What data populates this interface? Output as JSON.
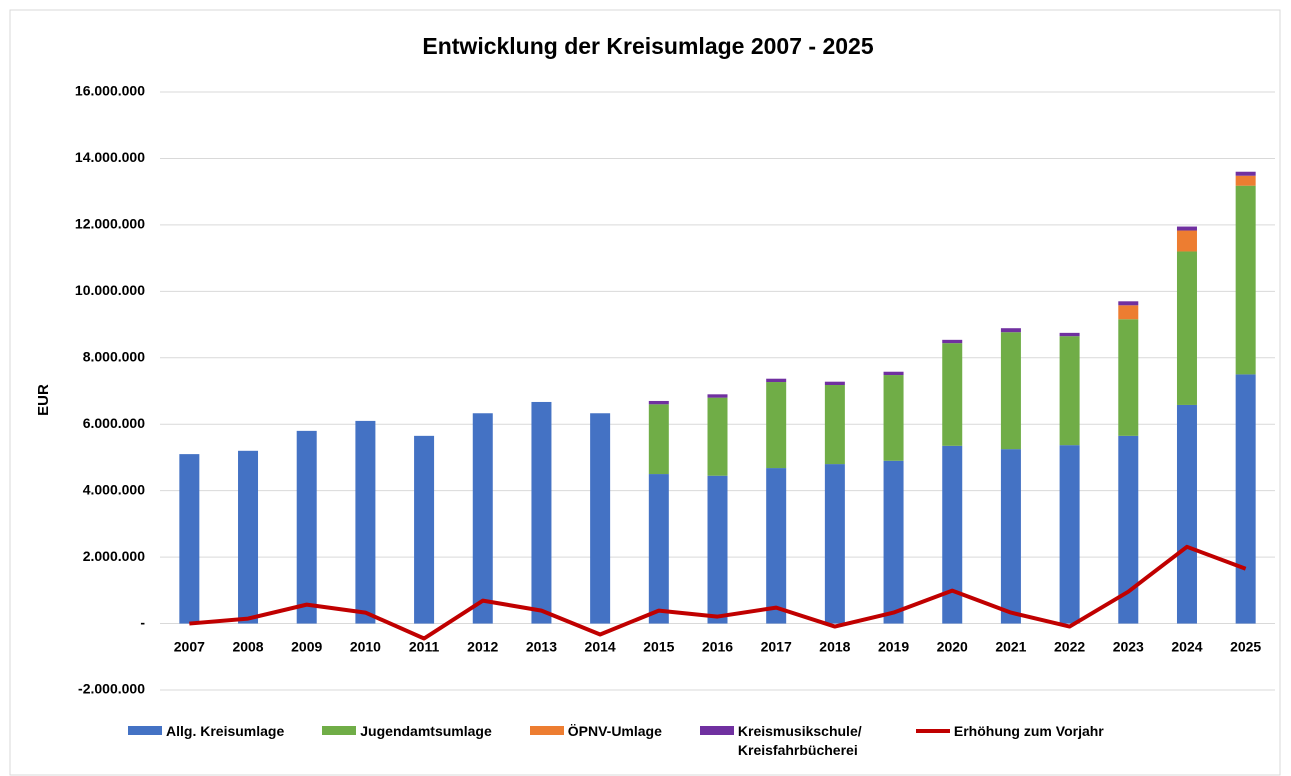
{
  "chart_data": {
    "type": "bar",
    "stacked": true,
    "title": "Entwicklung der Kreisumlage 2007 - 2025",
    "y_label": "EUR",
    "categories": [
      "2007",
      "2008",
      "2009",
      "2010",
      "2011",
      "2012",
      "2013",
      "2014",
      "2015",
      "2016",
      "2017",
      "2018",
      "2019",
      "2020",
      "2021",
      "2022",
      "2023",
      "2024",
      "2025"
    ],
    "series": [
      {
        "name": "Allg. Kreisumlage",
        "color": "#4472c4",
        "values": [
          5100000,
          5200000,
          5800000,
          6100000,
          5650000,
          6330000,
          6670000,
          6330000,
          4500000,
          4450000,
          4680000,
          4800000,
          4900000,
          5350000,
          5250000,
          5370000,
          5650000,
          6580000,
          7500000
        ]
      },
      {
        "name": "Jugendamtsumlage",
        "color": "#70ad47",
        "values": [
          null,
          null,
          null,
          null,
          null,
          null,
          null,
          null,
          2100000,
          2350000,
          2590000,
          2380000,
          2580000,
          3090000,
          3520000,
          3280000,
          3510000,
          4620000,
          5680000
        ]
      },
      {
        "name": "ÖPNV-Umlage",
        "color": "#ed7d31",
        "values": [
          null,
          null,
          null,
          null,
          null,
          null,
          null,
          null,
          null,
          null,
          null,
          null,
          null,
          null,
          null,
          null,
          420000,
          630000,
          300000
        ]
      },
      {
        "name": "Kreismusikschule/ Kreisfahrbücherei",
        "color": "#7030a0",
        "values": [
          null,
          null,
          null,
          null,
          null,
          null,
          null,
          null,
          100000,
          100000,
          100000,
          100000,
          100000,
          100000,
          120000,
          100000,
          120000,
          120000,
          120000
        ]
      },
      {
        "name": "Erhöhung zum Vorjahr",
        "type": "line",
        "color": "#c00000",
        "values": [
          0,
          150000,
          570000,
          330000,
          -450000,
          690000,
          390000,
          -330000,
          390000,
          210000,
          480000,
          -90000,
          330000,
          990000,
          330000,
          -90000,
          960000,
          2310000,
          1650000
        ]
      }
    ],
    "ylim": [
      -2000000,
      16000000
    ],
    "yticks": [
      {
        "value": -2000000,
        "label": "-2.000.000"
      },
      {
        "value": 0,
        "label": "-"
      },
      {
        "value": 2000000,
        "label": "2.000.000"
      },
      {
        "value": 4000000,
        "label": "4.000.000"
      },
      {
        "value": 6000000,
        "label": "6.000.000"
      },
      {
        "value": 8000000,
        "label": "8.000.000"
      },
      {
        "value": 10000000,
        "label": "10.000.000"
      },
      {
        "value": 12000000,
        "label": "12.000.000"
      },
      {
        "value": 14000000,
        "label": "14.000.000"
      },
      {
        "value": 16000000,
        "label": "16.000.000"
      }
    ],
    "grid": true,
    "legend": "bottom"
  }
}
